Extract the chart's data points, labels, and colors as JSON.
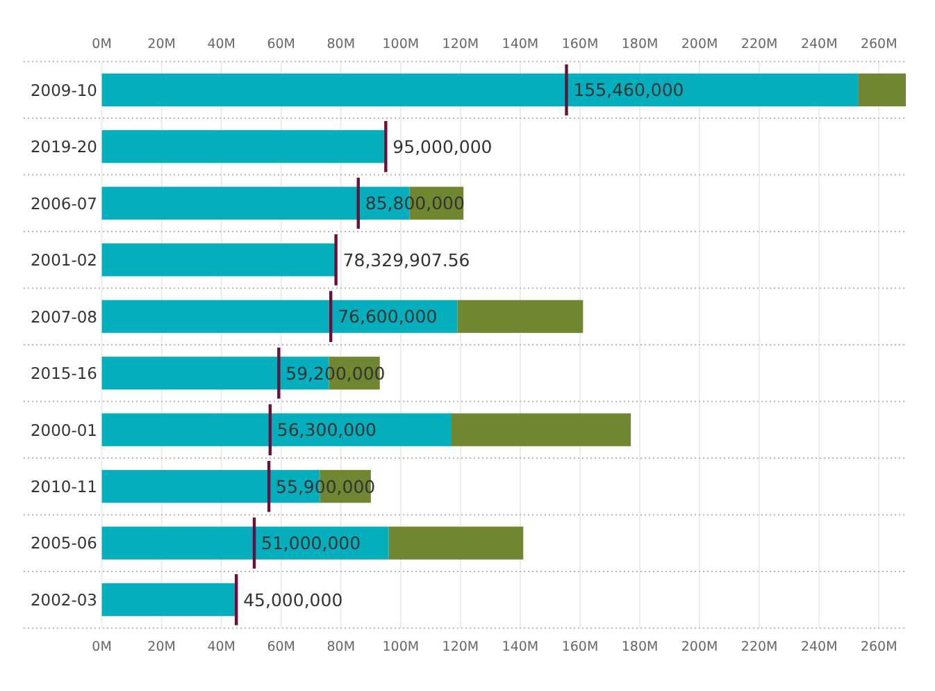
{
  "chart_data": {
    "type": "bar",
    "orientation": "horizontal",
    "stacked": true,
    "categories": [
      "2009-10",
      "2019-20",
      "2006-07",
      "2001-02",
      "2007-08",
      "2015-16",
      "2000-01",
      "2010-11",
      "2005-06",
      "2002-03"
    ],
    "series": [
      {
        "color": "#05aebd",
        "values": [
          253000000,
          95000000,
          103000000,
          78300000,
          119000000,
          76000000,
          117000000,
          73000000,
          96000000,
          45000000
        ]
      },
      {
        "color": "#718630",
        "values": [
          16000000,
          null,
          18000000,
          null,
          42000000,
          17000000,
          60000000,
          17000000,
          45000000,
          null
        ]
      }
    ],
    "ref_lines": [
      {
        "axis": "x",
        "value": 155460000,
        "label": "155,460,000",
        "color": "#6d0f3b"
      },
      {
        "axis": "x",
        "value": 95000000,
        "label": "95,000,000",
        "color": "#6d0f3b"
      },
      {
        "axis": "x",
        "value": 85800000,
        "label": "85,800,000",
        "color": "#6d0f3b"
      },
      {
        "axis": "x",
        "value": 78329907.56,
        "label": "78,329,907.56",
        "color": "#6d0f3b"
      },
      {
        "axis": "x",
        "value": 76600000,
        "label": "76,600,000",
        "color": "#6d0f3b"
      },
      {
        "axis": "x",
        "value": 59200000,
        "label": "59,200,000",
        "color": "#6d0f3b"
      },
      {
        "axis": "x",
        "value": 56300000,
        "label": "56,300,000",
        "color": "#6d0f3b"
      },
      {
        "axis": "x",
        "value": 55900000,
        "label": "55,900,000",
        "color": "#6d0f3b"
      },
      {
        "axis": "x",
        "value": 51000000,
        "label": "51,000,000",
        "color": "#6d0f3b"
      },
      {
        "axis": "x",
        "value": 45000000,
        "label": "45,000,000",
        "color": "#6d0f3b"
      }
    ],
    "xlim": [
      0,
      269000000
    ],
    "xticks": [
      {
        "value": 0,
        "label": "0M"
      },
      {
        "value": 20000000,
        "label": "20M"
      },
      {
        "value": 40000000,
        "label": "40M"
      },
      {
        "value": 60000000,
        "label": "60M"
      },
      {
        "value": 80000000,
        "label": "80M"
      },
      {
        "value": 100000000,
        "label": "100M"
      },
      {
        "value": 120000000,
        "label": "120M"
      },
      {
        "value": 140000000,
        "label": "140M"
      },
      {
        "value": 160000000,
        "label": "160M"
      },
      {
        "value": 180000000,
        "label": "180M"
      },
      {
        "value": 200000000,
        "label": "200M"
      },
      {
        "value": 220000000,
        "label": "220M"
      },
      {
        "value": 240000000,
        "label": "240M"
      },
      {
        "value": 260000000,
        "label": "260M"
      }
    ],
    "x2lim": [
      0,
      269000000
    ],
    "x2ticks": [
      {
        "value": 0,
        "label": "0M"
      },
      {
        "value": 20000000,
        "label": "20M"
      },
      {
        "value": 40000000,
        "label": "40M"
      },
      {
        "value": 60000000,
        "label": "60M"
      },
      {
        "value": 80000000,
        "label": "80M"
      },
      {
        "value": 100000000,
        "label": "100M"
      },
      {
        "value": 120000000,
        "label": "120M"
      },
      {
        "value": 140000000,
        "label": "140M"
      },
      {
        "value": 160000000,
        "label": "160M"
      },
      {
        "value": 180000000,
        "label": "180M"
      },
      {
        "value": 200000000,
        "label": "200M"
      },
      {
        "value": 220000000,
        "label": "220M"
      },
      {
        "value": 240000000,
        "label": "240M"
      },
      {
        "value": 260000000,
        "label": "260M"
      }
    ],
    "grid": true
  }
}
